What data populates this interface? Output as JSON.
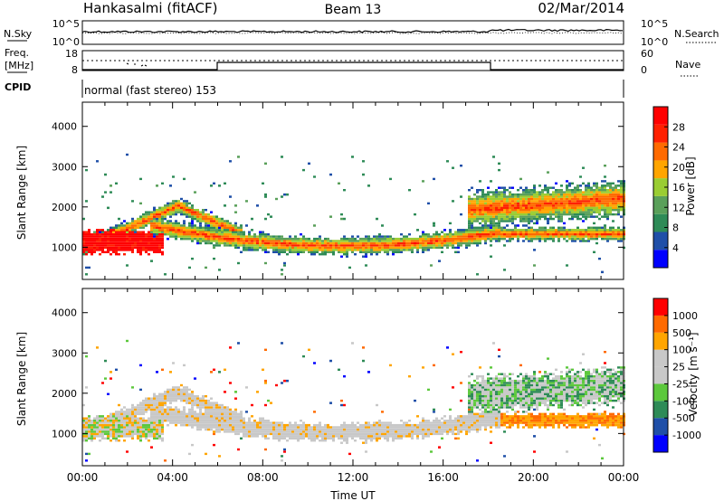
{
  "header": {
    "station": "Hankasalmi (fitACF)",
    "beam": "Beam 13",
    "date": "02/Mar/2014"
  },
  "noise_panel": {
    "left_label": "N.Sky",
    "right_label": "N.Search",
    "ytick_top": "10^5",
    "ytick_bottom": "10^0"
  },
  "freq_panel": {
    "left_label_line1": "Freq.",
    "left_label_line2": "[MHz]",
    "left_tick_top": "18",
    "left_tick_bottom": "8",
    "right_label": "Nave",
    "right_tick_top": "60",
    "right_tick_bottom": "0"
  },
  "cpid": {
    "label": "CPID",
    "text": "normal (fast stereo) 153"
  },
  "colors": {
    "power_scale": [
      "#0000ff",
      "#1f4fa8",
      "#2e8b57",
      "#5aa05a",
      "#9acd32",
      "#ffa500",
      "#ff6a00",
      "#ff2000",
      "#ff0000"
    ],
    "velocity_scale": [
      "#ff0000",
      "#ff6a00",
      "#ffa500",
      "#c8c8c8",
      "#c8c8c8",
      "#5cc83c",
      "#2e8b57",
      "#1f4fa8",
      "#0000ff"
    ],
    "ground_scatter": "#c8c8c8"
  },
  "chart_data": [
    {
      "type": "heatmap",
      "title": "",
      "xlabel": "",
      "ylabel": "Slant Range [km]",
      "xlim": [
        "00:00",
        "24:00"
      ],
      "ylim": [
        200,
        4600
      ],
      "yticks": [
        "1000",
        "2000",
        "3000",
        "4000"
      ],
      "colorbar_label": "Power [dB]",
      "colorbar_ticks": [
        "4",
        "8",
        "12",
        "16",
        "20",
        "24",
        "28"
      ],
      "colorbar_range": [
        0,
        32
      ]
    },
    {
      "type": "heatmap",
      "title": "",
      "xlabel": "Time UT",
      "ylabel": "Slant Range [km]",
      "xlim": [
        "00:00",
        "24:00"
      ],
      "ylim": [
        200,
        4600
      ],
      "xticks": [
        "00:00",
        "04:00",
        "08:00",
        "12:00",
        "16:00",
        "20:00",
        "00:00"
      ],
      "yticks": [
        "1000",
        "2000",
        "3000",
        "4000"
      ],
      "colorbar_label": "Velocity [m s⁻¹]",
      "colorbar_ticks": [
        "1000",
        "500",
        "100",
        "25",
        "-25",
        "-100",
        "-500",
        "-1000"
      ]
    }
  ]
}
